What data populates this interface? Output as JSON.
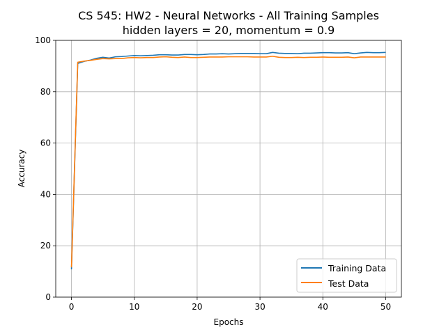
{
  "chart_data": {
    "type": "line",
    "title": "CS 545: HW2 - Neural Networks - All Training Samples",
    "subtitle": "hidden layers = 20, momentum = 0.9",
    "xlabel": "Epochs",
    "ylabel": "Accuracy",
    "xlim": [
      -2.5,
      52.5
    ],
    "ylim": [
      0,
      100
    ],
    "xticks": [
      0,
      10,
      20,
      30,
      40,
      50
    ],
    "yticks": [
      0,
      20,
      40,
      60,
      80,
      100
    ],
    "grid": true,
    "legend_position": "lower-right",
    "x": [
      0,
      1,
      2,
      3,
      4,
      5,
      6,
      7,
      8,
      9,
      10,
      11,
      12,
      13,
      14,
      15,
      16,
      17,
      18,
      19,
      20,
      21,
      22,
      23,
      24,
      25,
      26,
      27,
      28,
      29,
      30,
      31,
      32,
      33,
      34,
      35,
      36,
      37,
      38,
      39,
      40,
      41,
      42,
      43,
      44,
      45,
      46,
      47,
      48,
      49,
      50
    ],
    "series": [
      {
        "name": "Training Data",
        "color": "#1f77b4",
        "values": [
          10.8,
          91.0,
          91.8,
          92.3,
          93.0,
          93.4,
          93.1,
          93.6,
          93.7,
          93.9,
          94.1,
          94.0,
          94.1,
          94.2,
          94.4,
          94.4,
          94.3,
          94.3,
          94.5,
          94.5,
          94.4,
          94.5,
          94.7,
          94.7,
          94.8,
          94.7,
          94.8,
          94.9,
          94.9,
          94.9,
          94.8,
          94.8,
          95.3,
          95.0,
          94.9,
          94.9,
          94.8,
          95.0,
          95.0,
          95.1,
          95.2,
          95.2,
          95.1,
          95.1,
          95.2,
          94.8,
          95.1,
          95.3,
          95.2,
          95.2,
          95.3
        ]
      },
      {
        "name": "Test Data",
        "color": "#ff7f0e",
        "values": [
          11.6,
          91.5,
          91.9,
          92.2,
          92.6,
          92.9,
          92.8,
          92.9,
          92.9,
          93.2,
          93.3,
          93.2,
          93.3,
          93.3,
          93.5,
          93.6,
          93.4,
          93.3,
          93.5,
          93.3,
          93.3,
          93.4,
          93.5,
          93.5,
          93.5,
          93.6,
          93.6,
          93.6,
          93.6,
          93.5,
          93.5,
          93.5,
          93.8,
          93.4,
          93.3,
          93.3,
          93.4,
          93.3,
          93.4,
          93.4,
          93.5,
          93.4,
          93.4,
          93.4,
          93.5,
          93.2,
          93.5,
          93.5,
          93.5,
          93.5,
          93.5
        ]
      }
    ]
  }
}
